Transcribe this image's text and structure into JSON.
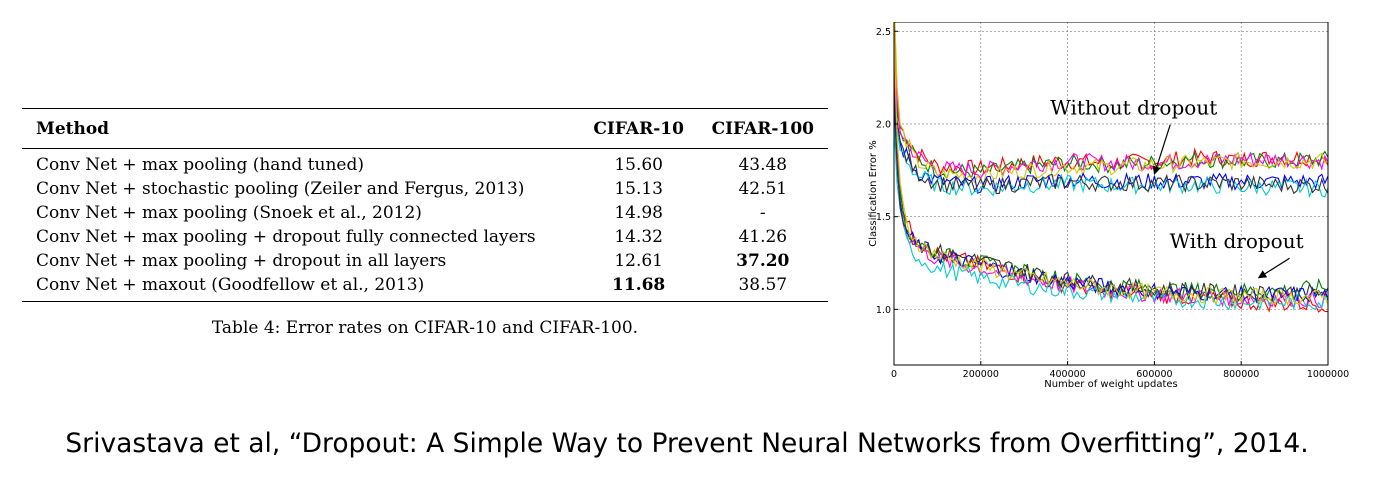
{
  "table": {
    "headers": [
      "Method",
      "CIFAR-10",
      "CIFAR-100"
    ],
    "rows": [
      {
        "method": "Conv Net + max pooling (hand tuned)",
        "cifar10": "15.60",
        "cifar100": "43.48",
        "best": ""
      },
      {
        "method": "Conv Net + stochastic pooling (Zeiler and Fergus, 2013)",
        "cifar10": "15.13",
        "cifar100": "42.51",
        "best": ""
      },
      {
        "method": "Conv Net + max pooling (Snoek et al., 2012)",
        "cifar10": "14.98",
        "cifar100": "-",
        "best": ""
      },
      {
        "method": "Conv Net + max pooling + dropout fully connected layers",
        "cifar10": "14.32",
        "cifar100": "41.26",
        "best": ""
      },
      {
        "method": "Conv Net + max pooling + dropout in all layers",
        "cifar10": "12.61",
        "cifar100": "37.20",
        "best": "cifar100"
      },
      {
        "method": "Conv Net + maxout (Goodfellow et al., 2013)",
        "cifar10": "11.68",
        "cifar100": "38.57",
        "best": "cifar10"
      }
    ],
    "caption": "Table 4: Error rates on CIFAR-10 and CIFAR-100."
  },
  "chart_data": {
    "type": "line",
    "xlabel": "Number of weight updates",
    "ylabel": "Classification Error %",
    "xlim": [
      0,
      1000000
    ],
    "ylim": [
      0.7,
      2.55
    ],
    "xticks": [
      0,
      200000,
      400000,
      600000,
      800000,
      1000000
    ],
    "xtick_labels": [
      "0",
      "200000",
      "400000",
      "600000",
      "800000",
      "1000000"
    ],
    "yticks": [
      1.0,
      1.5,
      2.0,
      2.5
    ],
    "ytick_labels": [
      "1.0",
      "1.5",
      "2.0",
      "2.5"
    ],
    "grid": true,
    "annotations": [
      {
        "text": "Without dropout",
        "x": 360000,
        "y": 2.05,
        "arrow_to": [
          600000,
          1.73
        ]
      },
      {
        "text": "With dropout",
        "x": 635000,
        "y": 1.33,
        "arrow_to": [
          840000,
          1.17
        ]
      }
    ],
    "groups": [
      {
        "label": "Without dropout",
        "series": [
          {
            "color": "#ff0000",
            "values": [
              [
                0,
                2.6
              ],
              [
                10000,
                2.0
              ],
              [
                50000,
                1.85
              ],
              [
                100000,
                1.77
              ],
              [
                200000,
                1.76
              ],
              [
                300000,
                1.79
              ],
              [
                400000,
                1.8
              ],
              [
                500000,
                1.79
              ],
              [
                600000,
                1.8
              ],
              [
                700000,
                1.82
              ],
              [
                800000,
                1.81
              ],
              [
                900000,
                1.82
              ],
              [
                1000000,
                1.82
              ]
            ]
          },
          {
            "color": "#008000",
            "values": [
              [
                0,
                2.4
              ],
              [
                10000,
                1.95
              ],
              [
                50000,
                1.82
              ],
              [
                100000,
                1.75
              ],
              [
                200000,
                1.74
              ],
              [
                300000,
                1.77
              ],
              [
                400000,
                1.79
              ],
              [
                500000,
                1.78
              ],
              [
                600000,
                1.79
              ],
              [
                700000,
                1.81
              ],
              [
                800000,
                1.8
              ],
              [
                900000,
                1.8
              ],
              [
                1000000,
                1.81
              ]
            ]
          },
          {
            "color": "#ff00ff",
            "values": [
              [
                0,
                2.5
              ],
              [
                10000,
                1.98
              ],
              [
                50000,
                1.83
              ],
              [
                100000,
                1.76
              ],
              [
                200000,
                1.75
              ],
              [
                300000,
                1.78
              ],
              [
                400000,
                1.8
              ],
              [
                500000,
                1.79
              ],
              [
                600000,
                1.79
              ],
              [
                700000,
                1.8
              ],
              [
                800000,
                1.81
              ],
              [
                900000,
                1.81
              ],
              [
                1000000,
                1.8
              ]
            ]
          },
          {
            "color": "#cccc00",
            "values": [
              [
                0,
                2.7
              ],
              [
                10000,
                2.0
              ],
              [
                50000,
                1.8
              ],
              [
                100000,
                1.73
              ],
              [
                200000,
                1.72
              ],
              [
                300000,
                1.75
              ],
              [
                400000,
                1.77
              ],
              [
                500000,
                1.77
              ],
              [
                600000,
                1.78
              ],
              [
                700000,
                1.79
              ],
              [
                800000,
                1.8
              ],
              [
                900000,
                1.8
              ],
              [
                1000000,
                1.8
              ]
            ]
          },
          {
            "color": "#0000ff",
            "values": [
              [
                0,
                2.3
              ],
              [
                10000,
                1.9
              ],
              [
                50000,
                1.75
              ],
              [
                100000,
                1.69
              ],
              [
                200000,
                1.67
              ],
              [
                300000,
                1.69
              ],
              [
                400000,
                1.7
              ],
              [
                500000,
                1.69
              ],
              [
                600000,
                1.69
              ],
              [
                700000,
                1.69
              ],
              [
                800000,
                1.69
              ],
              [
                900000,
                1.69
              ],
              [
                1000000,
                1.69
              ]
            ]
          },
          {
            "color": "#00cccc",
            "values": [
              [
                0,
                2.2
              ],
              [
                10000,
                1.88
              ],
              [
                50000,
                1.73
              ],
              [
                100000,
                1.67
              ],
              [
                200000,
                1.65
              ],
              [
                300000,
                1.67
              ],
              [
                400000,
                1.68
              ],
              [
                500000,
                1.67
              ],
              [
                600000,
                1.67
              ],
              [
                700000,
                1.67
              ],
              [
                800000,
                1.66
              ],
              [
                900000,
                1.66
              ],
              [
                1000000,
                1.65
              ]
            ]
          },
          {
            "color": "#333333",
            "values": [
              [
                0,
                2.3
              ],
              [
                10000,
                1.9
              ],
              [
                50000,
                1.74
              ],
              [
                100000,
                1.68
              ],
              [
                200000,
                1.66
              ],
              [
                300000,
                1.68
              ],
              [
                400000,
                1.69
              ],
              [
                500000,
                1.68
              ],
              [
                600000,
                1.68
              ],
              [
                700000,
                1.68
              ],
              [
                800000,
                1.68
              ],
              [
                900000,
                1.67
              ],
              [
                1000000,
                1.67
              ]
            ]
          }
        ]
      },
      {
        "label": "With dropout",
        "series": [
          {
            "color": "#ff0000",
            "values": [
              [
                0,
                2.4
              ],
              [
                10000,
                1.7
              ],
              [
                30000,
                1.45
              ],
              [
                60000,
                1.36
              ],
              [
                100000,
                1.3
              ],
              [
                200000,
                1.24
              ],
              [
                300000,
                1.18
              ],
              [
                400000,
                1.13
              ],
              [
                500000,
                1.1
              ],
              [
                600000,
                1.08
              ],
              [
                700000,
                1.06
              ],
              [
                800000,
                1.04
              ],
              [
                900000,
                1.03
              ],
              [
                1000000,
                1.03
              ]
            ]
          },
          {
            "color": "#008000",
            "values": [
              [
                0,
                2.2
              ],
              [
                10000,
                1.65
              ],
              [
                30000,
                1.42
              ],
              [
                60000,
                1.35
              ],
              [
                100000,
                1.3
              ],
              [
                200000,
                1.25
              ],
              [
                300000,
                1.2
              ],
              [
                400000,
                1.16
              ],
              [
                500000,
                1.13
              ],
              [
                600000,
                1.11
              ],
              [
                700000,
                1.1
              ],
              [
                800000,
                1.1
              ],
              [
                900000,
                1.1
              ],
              [
                1000000,
                1.12
              ]
            ]
          },
          {
            "color": "#ff00ff",
            "values": [
              [
                0,
                2.3
              ],
              [
                10000,
                1.62
              ],
              [
                30000,
                1.4
              ],
              [
                60000,
                1.33
              ],
              [
                100000,
                1.27
              ],
              [
                200000,
                1.22
              ],
              [
                300000,
                1.17
              ],
              [
                400000,
                1.13
              ],
              [
                500000,
                1.1
              ],
              [
                600000,
                1.08
              ],
              [
                700000,
                1.07
              ],
              [
                800000,
                1.06
              ],
              [
                900000,
                1.06
              ],
              [
                1000000,
                1.05
              ]
            ]
          },
          {
            "color": "#0000ff",
            "values": [
              [
                0,
                2.1
              ],
              [
                10000,
                1.6
              ],
              [
                30000,
                1.4
              ],
              [
                60000,
                1.34
              ],
              [
                100000,
                1.29
              ],
              [
                200000,
                1.24
              ],
              [
                300000,
                1.19
              ],
              [
                400000,
                1.15
              ],
              [
                500000,
                1.12
              ],
              [
                600000,
                1.1
              ],
              [
                700000,
                1.09
              ],
              [
                800000,
                1.08
              ],
              [
                900000,
                1.08
              ],
              [
                1000000,
                1.08
              ]
            ]
          },
          {
            "color": "#00cccc",
            "values": [
              [
                0,
                2.0
              ],
              [
                10000,
                1.55
              ],
              [
                30000,
                1.35
              ],
              [
                60000,
                1.27
              ],
              [
                100000,
                1.22
              ],
              [
                200000,
                1.17
              ],
              [
                300000,
                1.13
              ],
              [
                400000,
                1.1
              ],
              [
                500000,
                1.08
              ],
              [
                600000,
                1.06
              ],
              [
                700000,
                1.05
              ],
              [
                800000,
                1.04
              ],
              [
                900000,
                1.04
              ],
              [
                1000000,
                1.04
              ]
            ]
          },
          {
            "color": "#333333",
            "values": [
              [
                0,
                2.2
              ],
              [
                10000,
                1.62
              ],
              [
                30000,
                1.42
              ],
              [
                60000,
                1.36
              ],
              [
                100000,
                1.31
              ],
              [
                200000,
                1.26
              ],
              [
                300000,
                1.21
              ],
              [
                400000,
                1.16
              ],
              [
                500000,
                1.13
              ],
              [
                600000,
                1.11
              ],
              [
                700000,
                1.1
              ],
              [
                800000,
                1.09
              ],
              [
                900000,
                1.09
              ],
              [
                1000000,
                1.09
              ]
            ]
          },
          {
            "color": "#cccc00",
            "values": [
              [
                0,
                2.5
              ],
              [
                10000,
                1.7
              ],
              [
                30000,
                1.44
              ],
              [
                60000,
                1.35
              ],
              [
                100000,
                1.29
              ],
              [
                200000,
                1.23
              ],
              [
                300000,
                1.18
              ],
              [
                400000,
                1.14
              ],
              [
                500000,
                1.11
              ],
              [
                600000,
                1.09
              ],
              [
                700000,
                1.08
              ],
              [
                800000,
                1.07
              ],
              [
                900000,
                1.07
              ],
              [
                1000000,
                1.06
              ]
            ]
          }
        ]
      }
    ]
  },
  "citation": "Srivastava et al, “Dropout: A Simple Way to Prevent Neural Networks from Overfitting”, 2014."
}
